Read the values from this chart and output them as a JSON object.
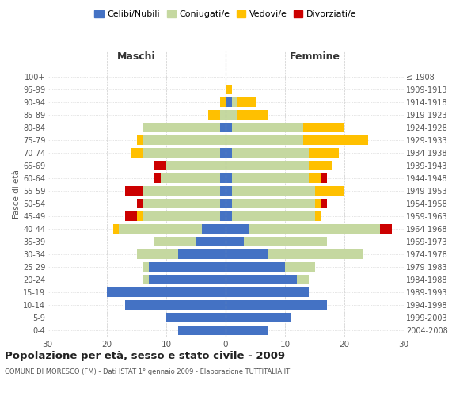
{
  "age_groups": [
    "0-4",
    "5-9",
    "10-14",
    "15-19",
    "20-24",
    "25-29",
    "30-34",
    "35-39",
    "40-44",
    "45-49",
    "50-54",
    "55-59",
    "60-64",
    "65-69",
    "70-74",
    "75-79",
    "80-84",
    "85-89",
    "90-94",
    "95-99",
    "100+"
  ],
  "birth_years": [
    "2004-2008",
    "1999-2003",
    "1994-1998",
    "1989-1993",
    "1984-1988",
    "1979-1983",
    "1974-1978",
    "1969-1973",
    "1964-1968",
    "1959-1963",
    "1954-1958",
    "1949-1953",
    "1944-1948",
    "1939-1943",
    "1934-1938",
    "1929-1933",
    "1924-1928",
    "1919-1923",
    "1914-1918",
    "1909-1913",
    "≤ 1908"
  ],
  "maschi": {
    "celibi": [
      8,
      10,
      17,
      20,
      13,
      13,
      8,
      5,
      4,
      1,
      1,
      1,
      1,
      0,
      1,
      0,
      1,
      0,
      0,
      0,
      0
    ],
    "coniugati": [
      0,
      0,
      0,
      0,
      1,
      1,
      7,
      7,
      14,
      13,
      13,
      13,
      10,
      10,
      13,
      14,
      13,
      1,
      0,
      0,
      0
    ],
    "vedovi": [
      0,
      0,
      0,
      0,
      0,
      0,
      0,
      0,
      1,
      1,
      0,
      0,
      0,
      0,
      2,
      1,
      0,
      2,
      1,
      0,
      0
    ],
    "divorziati": [
      0,
      0,
      0,
      0,
      0,
      0,
      0,
      0,
      0,
      2,
      1,
      3,
      1,
      2,
      0,
      0,
      0,
      0,
      0,
      0,
      0
    ]
  },
  "femmine": {
    "nubili": [
      7,
      11,
      17,
      14,
      12,
      10,
      7,
      3,
      4,
      1,
      1,
      1,
      1,
      0,
      1,
      0,
      1,
      0,
      1,
      0,
      0
    ],
    "coniugate": [
      0,
      0,
      0,
      0,
      2,
      5,
      16,
      14,
      22,
      14,
      14,
      14,
      13,
      14,
      13,
      13,
      12,
      2,
      1,
      0,
      0
    ],
    "vedove": [
      0,
      0,
      0,
      0,
      0,
      0,
      0,
      0,
      0,
      1,
      1,
      5,
      2,
      4,
      5,
      11,
      7,
      5,
      3,
      1,
      0
    ],
    "divorziate": [
      0,
      0,
      0,
      0,
      0,
      0,
      0,
      0,
      2,
      0,
      1,
      0,
      1,
      0,
      0,
      0,
      0,
      0,
      0,
      0,
      0
    ]
  },
  "colors": {
    "celibi": "#4472c4",
    "coniugati": "#c5d8a0",
    "vedovi": "#ffc000",
    "divorziati": "#cc0000"
  },
  "title": "Popolazione per età, sesso e stato civile - 2009",
  "subtitle": "COMUNE DI MORESCO (FM) - Dati ISTAT 1° gennaio 2009 - Elaborazione TUTTITALIA.IT",
  "xlabel_left": "Maschi",
  "xlabel_right": "Femmine",
  "ylabel_left": "Fasce di età",
  "xlim": 30,
  "legend_labels": [
    "Celibi/Nubili",
    "Coniugati/e",
    "Vedovi/e",
    "Divorziati/e"
  ]
}
